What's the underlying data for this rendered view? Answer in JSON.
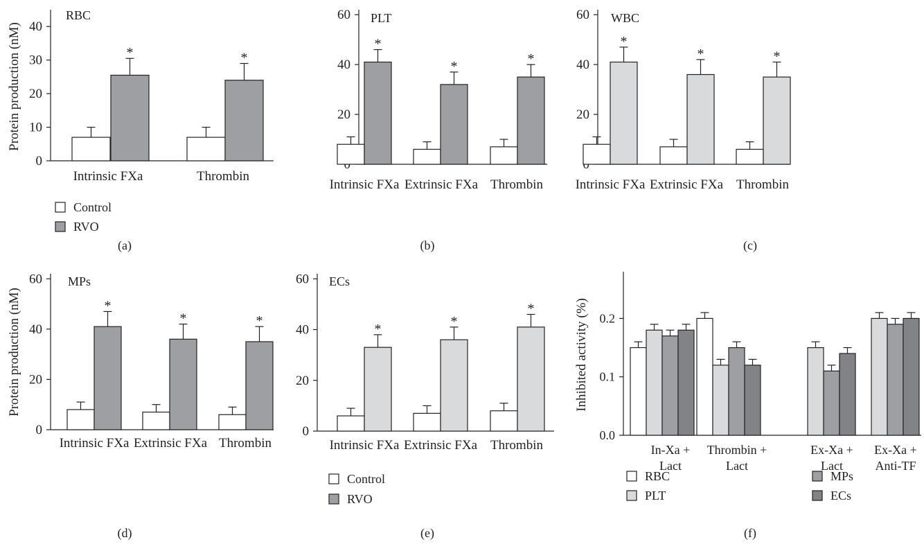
{
  "figure": {
    "legend_control": "Control",
    "legend_rvo": "RVO"
  },
  "chart_data": [
    {
      "id": "a",
      "panel_label": "(a)",
      "inner_title": "RBC",
      "type": "bar",
      "ylabel": "Protein production (nM)",
      "ylim": [
        0,
        45
      ],
      "yticks": [
        0,
        10,
        20,
        30,
        40
      ],
      "categories": [
        "Intrinsic FXa",
        "Thrombin"
      ],
      "series": [
        {
          "name": "Control",
          "values": [
            7,
            7
          ],
          "errors": [
            3,
            3
          ],
          "color": "#ffffff"
        },
        {
          "name": "RVO",
          "values": [
            25.5,
            24
          ],
          "errors": [
            5,
            5
          ],
          "color": "#9e9fa3"
        }
      ],
      "annotations": [
        "*",
        "*"
      ],
      "grid": false
    },
    {
      "id": "b",
      "panel_label": "(b)",
      "inner_title": "PLT",
      "type": "bar",
      "ylabel": "",
      "ylim": [
        0,
        62
      ],
      "yticks": [
        0,
        20,
        40,
        60
      ],
      "categories": [
        "Intrinsic FXa",
        "Extrinsic FXa",
        "Thrombin"
      ],
      "series": [
        {
          "name": "Control",
          "values": [
            8,
            6,
            7
          ],
          "errors": [
            3,
            3,
            3
          ],
          "color": "#ffffff"
        },
        {
          "name": "RVO",
          "values": [
            41,
            32,
            35
          ],
          "errors": [
            5,
            5,
            5
          ],
          "color": "#9e9fa3"
        }
      ],
      "annotations": [
        "*",
        "*",
        "*"
      ],
      "grid": false
    },
    {
      "id": "c",
      "panel_label": "(c)",
      "inner_title": "WBC",
      "type": "bar",
      "ylabel": "",
      "ylim": [
        0,
        62
      ],
      "yticks": [
        0,
        20,
        40,
        60
      ],
      "categories": [
        "Intrinsic FXa",
        "Extrinsic FXa",
        "Thrombin"
      ],
      "series": [
        {
          "name": "Control",
          "values": [
            8,
            7,
            6
          ],
          "errors": [
            3,
            3,
            3
          ],
          "color": "#ffffff"
        },
        {
          "name": "RVO",
          "values": [
            41,
            36,
            35
          ],
          "errors": [
            6,
            6,
            6
          ],
          "color": "#d9dadc"
        }
      ],
      "annotations": [
        "*",
        "*",
        "*"
      ],
      "grid": false
    },
    {
      "id": "d",
      "panel_label": "(d)",
      "inner_title": "MPs",
      "type": "bar",
      "ylabel": "Protein production (nM)",
      "ylim": [
        0,
        62
      ],
      "yticks": [
        0,
        20,
        40,
        60
      ],
      "categories": [
        "Intrinsic FXa",
        "Extrinsic FXa",
        "Thrombin"
      ],
      "series": [
        {
          "name": "Control",
          "values": [
            8,
            7,
            6
          ],
          "errors": [
            3,
            3,
            3
          ],
          "color": "#ffffff"
        },
        {
          "name": "RVO",
          "values": [
            41,
            36,
            35
          ],
          "errors": [
            6,
            6,
            6
          ],
          "color": "#9e9fa3"
        }
      ],
      "annotations": [
        "*",
        "*",
        "*"
      ],
      "grid": false
    },
    {
      "id": "e",
      "panel_label": "(e)",
      "inner_title": "ECs",
      "type": "bar",
      "ylabel": "",
      "ylim": [
        0,
        62
      ],
      "yticks": [
        0,
        20,
        40,
        60
      ],
      "categories": [
        "Intrinsic FXa",
        "Extrinsic FXa",
        "Thrombin"
      ],
      "series": [
        {
          "name": "Control",
          "values": [
            6,
            7,
            8
          ],
          "errors": [
            3,
            3,
            3
          ],
          "color": "#ffffff"
        },
        {
          "name": "RVO",
          "values": [
            33,
            36,
            41
          ],
          "errors": [
            5,
            5,
            5
          ],
          "color": "#d9dadc"
        }
      ],
      "annotations": [
        "*",
        "*",
        "*"
      ],
      "grid": false
    },
    {
      "id": "f",
      "panel_label": "(f)",
      "inner_title": "",
      "type": "bar",
      "ylabel": "Inhibited activity (%)",
      "ylim": [
        0,
        0.28
      ],
      "yticks": [
        0.0,
        0.1,
        0.2
      ],
      "ytick_labels": [
        "0.0",
        "0.1",
        "0.2"
      ],
      "categories": [
        [
          "In-Xa +",
          "Lact"
        ],
        [
          "Thrombin +",
          "Lact"
        ],
        [
          "Ex-Xa +",
          "Lact"
        ],
        [
          "Ex-Xa +",
          "Anti-TF"
        ]
      ],
      "series": [
        {
          "name": "RBC",
          "values": [
            0.15,
            0.2,
            null,
            null
          ],
          "errors": [
            0.01,
            0.01,
            null,
            null
          ],
          "color": "#ffffff"
        },
        {
          "name": "PLT",
          "values": [
            0.18,
            0.12,
            0.15,
            0.2
          ],
          "errors": [
            0.01,
            0.01,
            0.01,
            0.01
          ],
          "color": "#d9dadc"
        },
        {
          "name": "MPs",
          "values": [
            0.17,
            0.15,
            0.11,
            0.19
          ],
          "errors": [
            0.01,
            0.01,
            0.01,
            0.01
          ],
          "color": "#9e9fa3"
        },
        {
          "name": "ECs",
          "values": [
            0.18,
            0.12,
            0.14,
            0.2
          ],
          "errors": [
            0.01,
            0.01,
            0.01,
            0.01
          ],
          "color": "#828387"
        }
      ],
      "grid": false
    }
  ]
}
